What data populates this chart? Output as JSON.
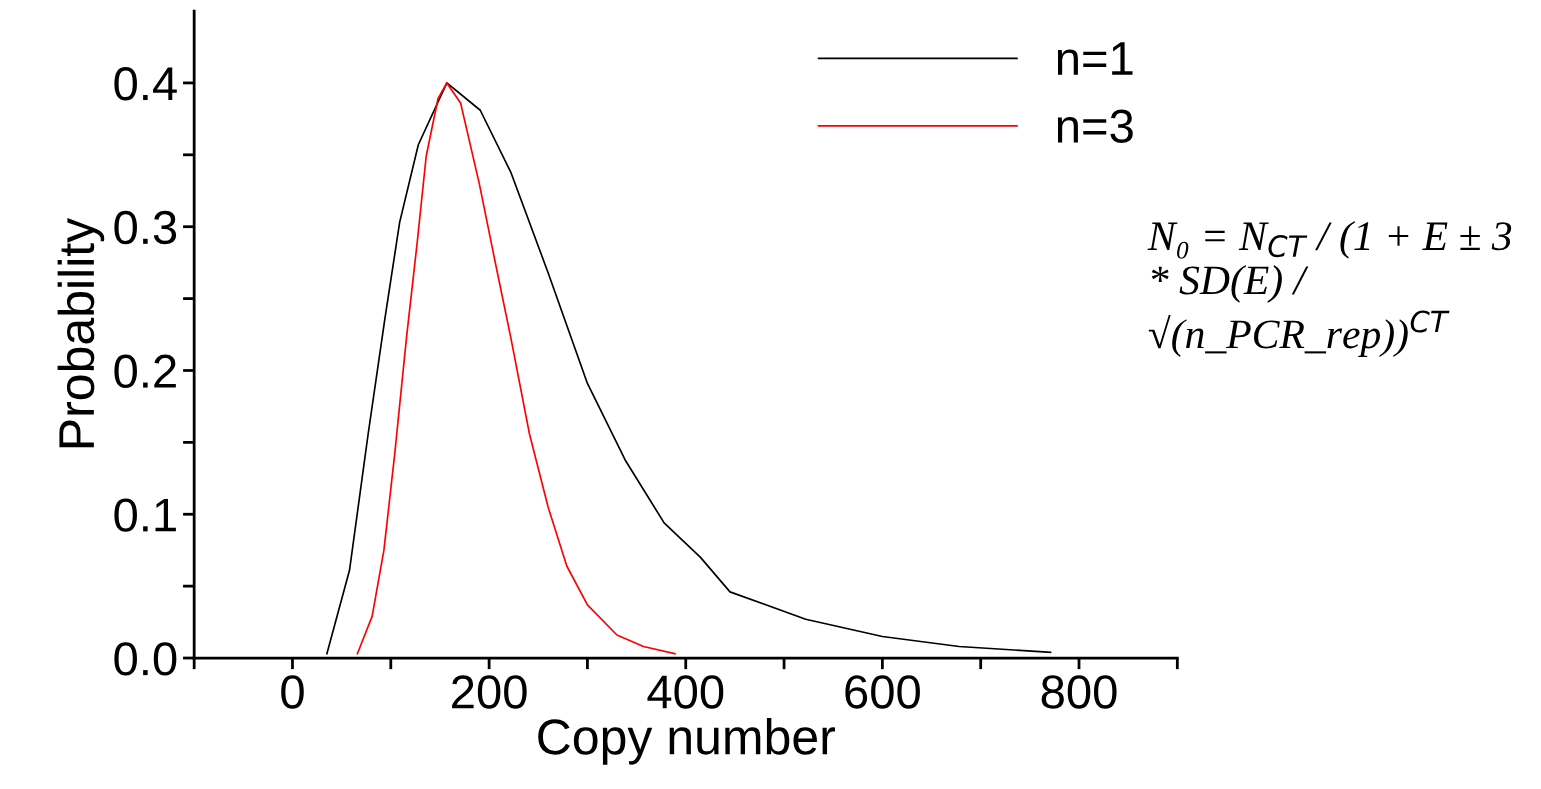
{
  "chart_data": {
    "type": "line",
    "xlabel": "Copy number",
    "ylabel": "Probability",
    "xlim": [
      -100,
      900
    ],
    "ylim": [
      0,
      0.45
    ],
    "xticks": [
      {
        "value": -100,
        "label": null
      },
      0,
      {
        "value": 100,
        "label": null
      },
      200,
      {
        "value": 300,
        "label": null
      },
      400,
      {
        "value": 500,
        "label": null
      },
      600,
      {
        "value": 700,
        "label": null
      },
      800,
      {
        "value": 900,
        "label": null
      }
    ],
    "yticks": [
      {
        "value": 0,
        "label": "0.0"
      },
      {
        "value": 0.05,
        "label": null
      },
      0.1,
      {
        "value": 0.15,
        "label": null
      },
      0.2,
      {
        "value": 0.25,
        "label": null
      },
      0.3,
      {
        "value": 0.35,
        "label": null
      },
      0.4
    ],
    "grid": false,
    "legend": "top right",
    "marker": "none",
    "line_style": "solid",
    "series": [
      {
        "name": "n=1",
        "color": "#000000",
        "x": [
          35,
          58,
          77,
          94,
          109,
          128,
          157,
          191,
          222,
          260,
          300,
          339,
          378,
          415,
          445,
          522,
          600,
          678,
          771
        ],
        "values": [
          0.003,
          0.061,
          0.156,
          0.236,
          0.303,
          0.357,
          0.4,
          0.381,
          0.338,
          0.268,
          0.191,
          0.137,
          0.094,
          0.07,
          0.046,
          0.027,
          0.015,
          0.008,
          0.004
        ]
      },
      {
        "name": "n=3",
        "color": "#ff0000",
        "x": [
          66,
          81,
          93,
          104,
          116,
          127,
          136,
          148,
          157,
          171,
          190,
          206,
          222,
          241,
          260,
          279,
          300,
          330,
          357,
          389
        ],
        "values": [
          0.003,
          0.029,
          0.075,
          0.142,
          0.223,
          0.29,
          0.349,
          0.389,
          0.4,
          0.386,
          0.33,
          0.276,
          0.223,
          0.156,
          0.105,
          0.064,
          0.037,
          0.016,
          0.008,
          0.003
        ]
      }
    ],
    "annotations": [
      "N₀ = N$_{CT}$ / (1 + E ± 3 * SD(E) / √(n_PCR_rep))$^{CT}$"
    ]
  }
}
